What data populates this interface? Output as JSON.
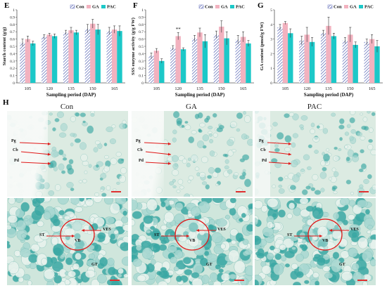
{
  "legend": {
    "con": "Con",
    "ga": "GA",
    "pac": "PAC"
  },
  "colors": {
    "con": "#3a4aa8",
    "ga": "#f2b2bf",
    "pac": "#1cc8c8",
    "arrow": "#e01818"
  },
  "panels": {
    "e": "E",
    "f": "F",
    "g": "G",
    "h": "H"
  },
  "chart_data": [
    {
      "type": "bar",
      "panel": "E",
      "categories": [
        "105",
        "120",
        "135",
        "150",
        "165"
      ],
      "series": [
        {
          "name": "Con",
          "values": [
            0.55,
            0.63,
            0.69,
            0.74,
            0.71
          ]
        },
        {
          "name": "GA",
          "values": [
            0.6,
            0.66,
            0.72,
            0.81,
            0.73
          ]
        },
        {
          "name": "PAC",
          "values": [
            0.54,
            0.64,
            0.69,
            0.73,
            0.71
          ]
        }
      ],
      "errors": [
        [
          0.05,
          0.03,
          0.03,
          0.06,
          0.05
        ],
        [
          0.04,
          0.02,
          0.04,
          0.06,
          0.05
        ],
        [
          0.03,
          0.03,
          0.03,
          0.07,
          0.07
        ]
      ],
      "xlabel": "Sampling period (DAP)",
      "ylabel": "Starch content (g/g)",
      "ylim": [
        0,
        1
      ],
      "yticks": [
        "0",
        "0.1",
        "0.2",
        "0.3",
        "0.4",
        "0.5",
        "0.6",
        "0.7",
        "0.8",
        "0.9",
        "1"
      ],
      "legend": "top-right"
    },
    {
      "type": "bar",
      "panel": "F",
      "categories": [
        "105",
        "120",
        "135",
        "150",
        "165"
      ],
      "series": [
        {
          "name": "Con",
          "values": [
            0.37,
            0.48,
            0.61,
            0.66,
            0.59
          ]
        },
        {
          "name": "GA",
          "values": [
            0.44,
            0.64,
            0.69,
            0.77,
            0.63
          ]
        },
        {
          "name": "PAC",
          "values": [
            0.3,
            0.46,
            0.57,
            0.61,
            0.54
          ]
        }
      ],
      "errors": [
        [
          0.04,
          0.03,
          0.04,
          0.05,
          0.06
        ],
        [
          0.03,
          0.05,
          0.06,
          0.08,
          0.07
        ],
        [
          0.03,
          0.02,
          0.09,
          0.09,
          0.04
        ]
      ],
      "annotations": [
        {
          "category": "120",
          "text": "**"
        }
      ],
      "xlabel": "Sampling period (DAP)",
      "ylabel": "SSS enzyme activity (g/g FW)",
      "ylim": [
        0,
        1
      ],
      "yticks": [
        "0",
        "0.1",
        "0.2",
        "0.3",
        "0.4",
        "0.5",
        "0.6",
        "0.7",
        "0.8",
        "0.9",
        "1"
      ],
      "legend": "top-right"
    },
    {
      "type": "bar",
      "panel": "G",
      "categories": [
        "105",
        "120",
        "135",
        "150",
        "165"
      ],
      "series": [
        {
          "name": "Con",
          "values": [
            3.8,
            2.9,
            3.4,
            2.9,
            2.8
          ]
        },
        {
          "name": "GA",
          "values": [
            4.1,
            3.3,
            3.9,
            3.3,
            3.0
          ]
        },
        {
          "name": "PAC",
          "values": [
            3.4,
            2.8,
            3.2,
            2.6,
            2.5
          ]
        }
      ],
      "errors": [
        [
          0.2,
          0.3,
          0.2,
          0.2,
          0.2
        ],
        [
          0.1,
          0.5,
          0.6,
          0.5,
          0.3
        ],
        [
          0.3,
          0.3,
          0.2,
          0.2,
          0.4
        ]
      ],
      "xlabel": "Sampling period (DAP)",
      "ylabel": "GA content (pmol/g FW)",
      "ylim": [
        0,
        5
      ],
      "yticks": [
        "0",
        "1",
        "2",
        "3",
        "4",
        "5"
      ],
      "legend": "top-right"
    }
  ],
  "micrographs": {
    "columns": [
      {
        "title": "Con",
        "top": [
          "Pg",
          "Cb",
          "Pd"
        ],
        "bottom": [
          "VES",
          "ST",
          "VB",
          "GT"
        ]
      },
      {
        "title": "GA",
        "top": [
          "Pg",
          "Cb",
          "Pd"
        ],
        "bottom": [
          "VES",
          "ST",
          "VB",
          "GT"
        ]
      },
      {
        "title": "PAC",
        "top": [
          "Pg",
          "Cb",
          "Pd"
        ],
        "bottom": [
          "VES",
          "ST",
          "VB",
          "GT"
        ]
      }
    ]
  }
}
